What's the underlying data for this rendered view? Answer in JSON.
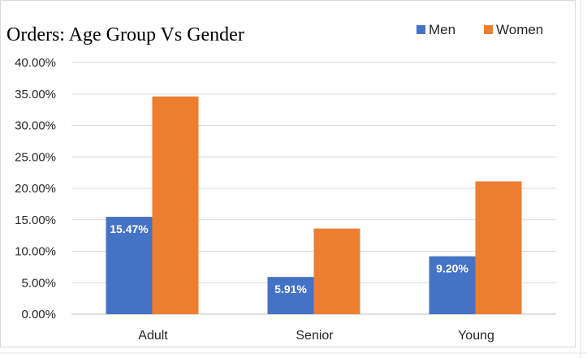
{
  "chart_data": {
    "type": "bar",
    "title": "Orders: Age Group Vs Gender",
    "categories": [
      "Adult",
      "Senior",
      "Young"
    ],
    "series": [
      {
        "name": "Men",
        "color": "#4472C4",
        "values": [
          15.47,
          5.91,
          9.2
        ],
        "data_labels": [
          "15.47%",
          "5.91%",
          "9.20%"
        ]
      },
      {
        "name": "Women",
        "color": "#ED7D31",
        "values": [
          34.6,
          13.6,
          21.1
        ],
        "data_labels": null
      }
    ],
    "ylim": [
      0,
      40
    ],
    "yticks": [
      "0.00%",
      "5.00%",
      "10.00%",
      "15.00%",
      "20.00%",
      "25.00%",
      "30.00%",
      "35.00%",
      "40.00%"
    ],
    "ytick_values": [
      0,
      5,
      10,
      15,
      20,
      25,
      30,
      35,
      40
    ],
    "xlabel": "",
    "ylabel": "",
    "grid": true,
    "legend_position": "top-right"
  },
  "colors": {
    "background": "#FFFFFF",
    "gridline": "#D9D9D9",
    "sheet_gridline": "#E3E3E3",
    "axis": "#BFBFBF"
  }
}
